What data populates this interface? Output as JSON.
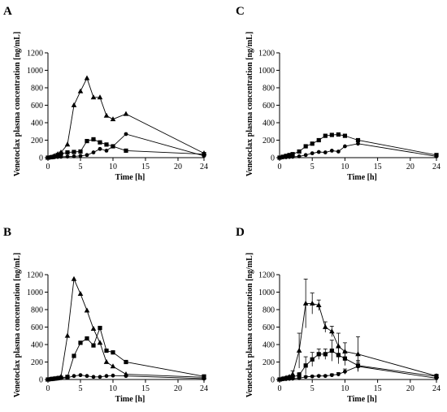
{
  "chart_data": [
    {
      "panel": "A",
      "type": "line",
      "xlabel": "Time [h]",
      "ylabel": "Venetoclax plasma concentration [ng/mL]",
      "xlim": [
        0,
        24
      ],
      "ylim": [
        0,
        1200
      ],
      "xticks": [
        0,
        5,
        10,
        15,
        20,
        24
      ],
      "yticks": [
        0,
        200,
        400,
        600,
        800,
        1000,
        1200
      ],
      "series": [
        {
          "marker": "triangle",
          "x": [
            0,
            0.5,
            1,
            1.5,
            2,
            3,
            4,
            5,
            6,
            7,
            8,
            9,
            10,
            12,
            24
          ],
          "y": [
            0,
            5,
            20,
            40,
            60,
            150,
            600,
            760,
            910,
            690,
            690,
            480,
            440,
            500,
            50
          ]
        },
        {
          "marker": "square",
          "x": [
            0,
            0.5,
            1,
            1.5,
            2,
            3,
            4,
            5,
            6,
            7,
            8,
            9,
            10,
            12,
            24
          ],
          "y": [
            0,
            5,
            15,
            30,
            45,
            60,
            65,
            70,
            190,
            210,
            175,
            150,
            130,
            80,
            40
          ]
        },
        {
          "marker": "circle",
          "x": [
            0,
            0.5,
            1,
            1.5,
            2,
            3,
            4,
            5,
            6,
            7,
            8,
            9,
            10,
            12,
            24
          ],
          "y": [
            0,
            2,
            5,
            8,
            10,
            12,
            15,
            20,
            30,
            60,
            100,
            80,
            130,
            270,
            20
          ]
        }
      ]
    },
    {
      "panel": "C",
      "type": "line",
      "xlabel": "Time [h]",
      "ylabel": "Venetoclax plasma concentration [ng/mL]",
      "xlim": [
        0,
        24
      ],
      "ylim": [
        0,
        1200
      ],
      "xticks": [
        0,
        5,
        10,
        15,
        20,
        24
      ],
      "yticks": [
        0,
        200,
        400,
        600,
        800,
        1000,
        1200
      ],
      "series": [
        {
          "marker": "square",
          "x": [
            0,
            0.5,
            1,
            1.5,
            2,
            3,
            4,
            5,
            6,
            7,
            8,
            9,
            10,
            12,
            24
          ],
          "y": [
            0,
            10,
            20,
            30,
            40,
            70,
            130,
            160,
            200,
            250,
            260,
            265,
            250,
            200,
            30
          ]
        },
        {
          "marker": "circle",
          "x": [
            0,
            0.5,
            1,
            1.5,
            2,
            3,
            4,
            5,
            6,
            7,
            8,
            9,
            10,
            12,
            24
          ],
          "y": [
            0,
            3,
            5,
            8,
            10,
            15,
            30,
            50,
            65,
            60,
            80,
            70,
            130,
            160,
            15
          ]
        }
      ]
    },
    {
      "panel": "B",
      "type": "line",
      "xlabel": "Time [h]",
      "ylabel": "Venetoclax plasma concentration [ng/mL]",
      "xlim": [
        0,
        24
      ],
      "ylim": [
        0,
        1200
      ],
      "xticks": [
        0,
        5,
        10,
        15,
        20,
        24
      ],
      "yticks": [
        0,
        200,
        400,
        600,
        800,
        1000,
        1200
      ],
      "series": [
        {
          "marker": "triangle",
          "x": [
            0,
            0.5,
            1,
            1.5,
            2,
            3,
            4,
            5,
            6,
            7,
            8,
            9,
            10,
            12,
            24
          ],
          "y": [
            0,
            5,
            10,
            15,
            30,
            500,
            1150,
            980,
            790,
            580,
            420,
            200,
            150,
            60,
            25
          ]
        },
        {
          "marker": "square",
          "x": [
            0,
            0.5,
            1,
            1.5,
            2,
            3,
            4,
            5,
            6,
            7,
            8,
            9,
            10,
            12,
            24
          ],
          "y": [
            0,
            5,
            10,
            15,
            20,
            30,
            270,
            420,
            470,
            390,
            590,
            330,
            310,
            200,
            35
          ]
        },
        {
          "marker": "circle",
          "x": [
            0,
            0.5,
            1,
            1.5,
            2,
            3,
            4,
            5,
            6,
            7,
            8,
            9,
            10,
            12,
            24
          ],
          "y": [
            0,
            2,
            5,
            10,
            15,
            20,
            40,
            50,
            40,
            30,
            30,
            40,
            45,
            40,
            10
          ]
        }
      ]
    },
    {
      "panel": "D",
      "type": "line",
      "xlabel": "Time [h]",
      "ylabel": "Venetoclax plasma concentration [ng/mL]",
      "xlim": [
        0,
        24
      ],
      "ylim": [
        0,
        1200
      ],
      "xticks": [
        0,
        5,
        10,
        15,
        20,
        24
      ],
      "yticks": [
        0,
        200,
        400,
        600,
        800,
        1000,
        1200
      ],
      "series": [
        {
          "marker": "triangle",
          "x": [
            0,
            0.5,
            1,
            1.5,
            2,
            3,
            4,
            5,
            6,
            7,
            8,
            9,
            10,
            12,
            24
          ],
          "y": [
            0,
            10,
            20,
            30,
            60,
            330,
            870,
            870,
            850,
            600,
            550,
            380,
            320,
            290,
            40
          ],
          "err": [
            0,
            5,
            10,
            15,
            40,
            200,
            280,
            120,
            60,
            60,
            60,
            150,
            100,
            200,
            20
          ]
        },
        {
          "marker": "square",
          "x": [
            0,
            0.5,
            1,
            1.5,
            2,
            3,
            4,
            5,
            6,
            7,
            8,
            9,
            10,
            12,
            24
          ],
          "y": [
            0,
            8,
            15,
            20,
            30,
            50,
            160,
            230,
            290,
            290,
            330,
            280,
            240,
            160,
            35
          ],
          "err": [
            0,
            5,
            10,
            10,
            15,
            30,
            100,
            80,
            60,
            60,
            120,
            100,
            80,
            60,
            20
          ]
        },
        {
          "marker": "circle",
          "x": [
            0,
            0.5,
            1,
            1.5,
            2,
            3,
            4,
            5,
            6,
            7,
            8,
            9,
            10,
            12,
            24
          ],
          "y": [
            0,
            3,
            5,
            8,
            10,
            15,
            30,
            35,
            40,
            40,
            50,
            60,
            90,
            150,
            15
          ],
          "err": [
            0,
            2,
            3,
            4,
            5,
            8,
            10,
            10,
            10,
            10,
            15,
            20,
            30,
            50,
            10
          ]
        }
      ]
    }
  ]
}
